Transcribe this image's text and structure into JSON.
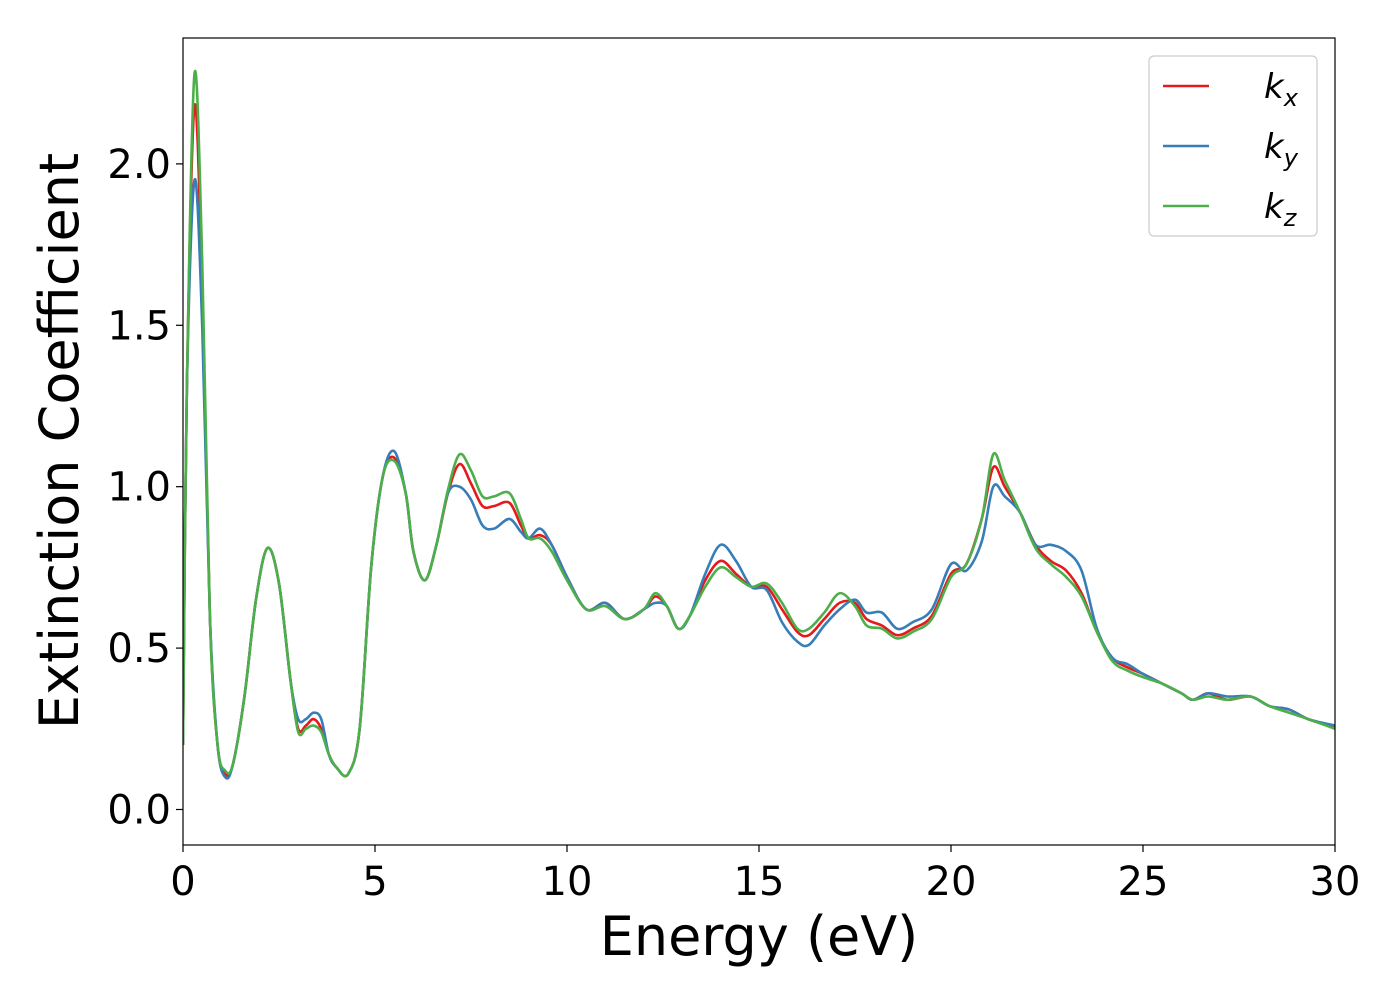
{
  "chart_data": {
    "type": "line",
    "xlabel": "Energy (eV)",
    "ylabel": "Extinction Coefficient",
    "x": [
      0,
      0.1,
      0.3,
      0.5,
      0.7,
      0.9,
      1.1,
      1.3,
      1.6,
      1.9,
      2.2,
      2.5,
      2.8,
      3.0,
      3.2,
      3.4,
      3.6,
      3.8,
      4.0,
      4.3,
      4.6,
      4.9,
      5.2,
      5.5,
      5.8,
      6.0,
      6.3,
      6.6,
      6.9,
      7.2,
      7.5,
      7.8,
      8.1,
      8.5,
      8.8,
      9.0,
      9.3,
      9.6,
      10.0,
      10.5,
      11.0,
      11.5,
      12.0,
      12.3,
      12.6,
      12.9,
      13.2,
      13.6,
      14.0,
      14.4,
      14.8,
      15.2,
      15.6,
      16.0,
      16.3,
      16.7,
      17.1,
      17.5,
      17.8,
      18.2,
      18.6,
      19.0,
      19.5,
      20.0,
      20.4,
      20.8,
      21.1,
      21.4,
      21.8,
      22.2,
      22.6,
      23.0,
      23.4,
      23.8,
      24.2,
      24.6,
      25.0,
      25.5,
      26.0,
      26.3,
      26.7,
      27.2,
      27.8,
      28.3,
      28.8,
      29.3,
      30.0
    ],
    "series": [
      {
        "name": "kx",
        "color": "#e41a1c",
        "values": [
          0.2,
          1.3,
          2.18,
          1.6,
          0.6,
          0.2,
          0.11,
          0.14,
          0.35,
          0.65,
          0.81,
          0.7,
          0.4,
          0.25,
          0.26,
          0.28,
          0.25,
          0.17,
          0.13,
          0.11,
          0.25,
          0.75,
          1.03,
          1.09,
          0.98,
          0.8,
          0.71,
          0.82,
          0.98,
          1.07,
          1.01,
          0.94,
          0.94,
          0.95,
          0.88,
          0.84,
          0.85,
          0.82,
          0.72,
          0.62,
          0.64,
          0.59,
          0.62,
          0.66,
          0.63,
          0.56,
          0.6,
          0.71,
          0.77,
          0.73,
          0.69,
          0.69,
          0.62,
          0.55,
          0.54,
          0.59,
          0.64,
          0.64,
          0.59,
          0.57,
          0.54,
          0.56,
          0.6,
          0.73,
          0.76,
          0.9,
          1.06,
          1.0,
          0.92,
          0.82,
          0.77,
          0.74,
          0.67,
          0.55,
          0.47,
          0.44,
          0.42,
          0.39,
          0.36,
          0.34,
          0.36,
          0.34,
          0.35,
          0.32,
          0.31,
          0.28,
          0.255
        ]
      },
      {
        "name": "ky",
        "color": "#377eb8",
        "values": [
          0.2,
          1.3,
          1.95,
          1.5,
          0.6,
          0.2,
          0.1,
          0.14,
          0.35,
          0.65,
          0.81,
          0.7,
          0.4,
          0.28,
          0.28,
          0.3,
          0.28,
          0.17,
          0.13,
          0.11,
          0.25,
          0.75,
          1.03,
          1.11,
          0.98,
          0.8,
          0.71,
          0.82,
          0.98,
          1.0,
          0.96,
          0.88,
          0.87,
          0.9,
          0.86,
          0.84,
          0.87,
          0.82,
          0.72,
          0.62,
          0.64,
          0.59,
          0.62,
          0.64,
          0.63,
          0.56,
          0.6,
          0.73,
          0.82,
          0.77,
          0.69,
          0.68,
          0.58,
          0.52,
          0.51,
          0.57,
          0.62,
          0.65,
          0.61,
          0.61,
          0.56,
          0.58,
          0.62,
          0.76,
          0.74,
          0.83,
          1.0,
          0.97,
          0.92,
          0.82,
          0.82,
          0.8,
          0.74,
          0.56,
          0.47,
          0.45,
          0.42,
          0.39,
          0.36,
          0.34,
          0.36,
          0.35,
          0.35,
          0.32,
          0.31,
          0.28,
          0.26
        ]
      },
      {
        "name": "kz",
        "color": "#4daf4a",
        "values": [
          0.2,
          1.3,
          2.28,
          1.7,
          0.6,
          0.2,
          0.12,
          0.14,
          0.35,
          0.65,
          0.81,
          0.7,
          0.4,
          0.24,
          0.25,
          0.26,
          0.24,
          0.17,
          0.13,
          0.11,
          0.25,
          0.75,
          1.03,
          1.08,
          0.98,
          0.8,
          0.71,
          0.82,
          0.99,
          1.1,
          1.05,
          0.97,
          0.97,
          0.98,
          0.9,
          0.84,
          0.84,
          0.8,
          0.71,
          0.62,
          0.63,
          0.59,
          0.62,
          0.67,
          0.63,
          0.56,
          0.6,
          0.69,
          0.75,
          0.72,
          0.69,
          0.7,
          0.64,
          0.56,
          0.56,
          0.61,
          0.67,
          0.63,
          0.57,
          0.56,
          0.53,
          0.55,
          0.59,
          0.72,
          0.76,
          0.9,
          1.1,
          1.02,
          0.92,
          0.81,
          0.76,
          0.72,
          0.66,
          0.55,
          0.46,
          0.43,
          0.41,
          0.39,
          0.36,
          0.34,
          0.35,
          0.34,
          0.35,
          0.32,
          0.3,
          0.28,
          0.25
        ]
      }
    ],
    "xlim": [
      0,
      30
    ],
    "xticks": [
      0,
      5,
      10,
      15,
      20,
      25,
      30
    ],
    "ylim": [
      -0.11,
      2.39
    ],
    "yticks": [
      {
        "value": 0,
        "label": "0.0"
      },
      0.5,
      {
        "value": 1,
        "label": "1.0"
      },
      1.5,
      {
        "value": 2,
        "label": "2.0"
      }
    ],
    "legend": "upper right",
    "grid": false
  }
}
